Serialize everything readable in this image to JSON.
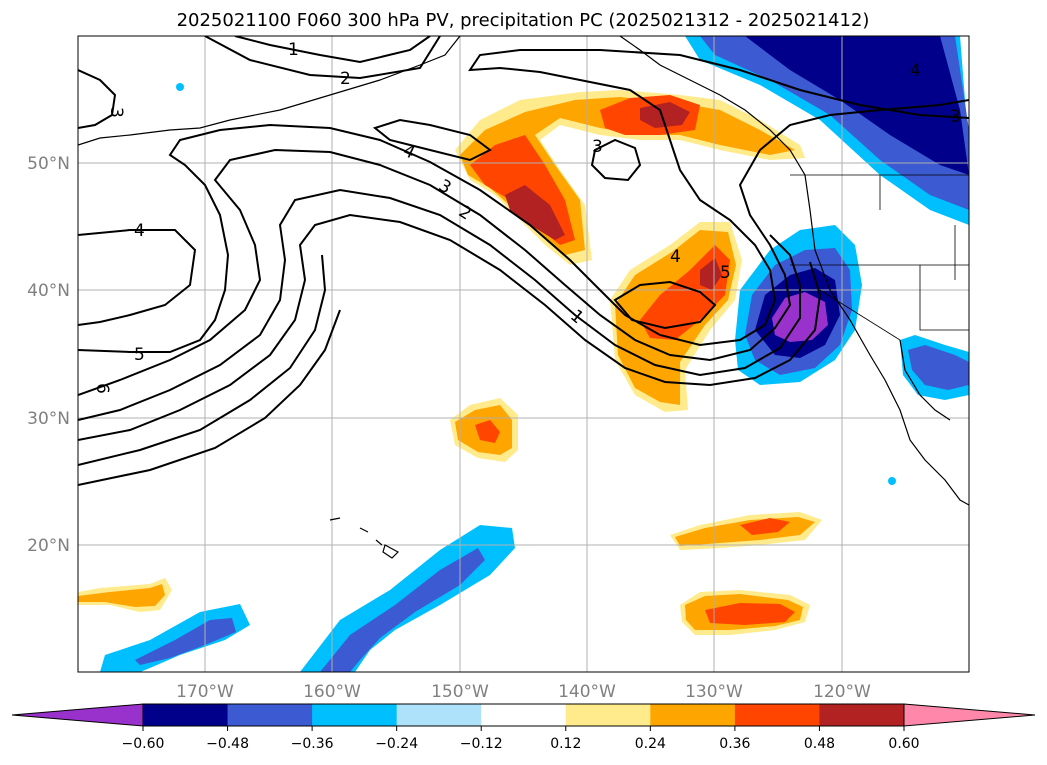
{
  "title": "2025021100 F060 300 hPa PV, precipitation PC (2025021312 - 2025021412)",
  "lat_ticks": [
    "50°N",
    "40°N",
    "30°N",
    "20°N"
  ],
  "lon_ticks": [
    "170°W",
    "160°W",
    "150°W",
    "140°W",
    "130°W",
    "120°W"
  ],
  "colorbar": {
    "levels": [
      "−0.60",
      "−0.48",
      "−0.36",
      "−0.24",
      "−0.12",
      "0.12",
      "0.24",
      "0.36",
      "0.48",
      "0.60"
    ],
    "colors": [
      "#9932cc",
      "#00008b",
      "#3c5ad2",
      "#00bfff",
      "#aee2fa",
      "#ffffff",
      "#ffeb8c",
      "#ffa500",
      "#ff4500",
      "#b22222",
      "#ff88aa"
    ]
  },
  "contour_labels": [
    "1",
    "2",
    "3",
    "4",
    "5",
    "6"
  ],
  "map": {
    "lon_range": [
      "180°W",
      "110°W"
    ],
    "lat_range": [
      "10°N",
      "60°N"
    ],
    "pv_contour_interval": "1"
  }
}
